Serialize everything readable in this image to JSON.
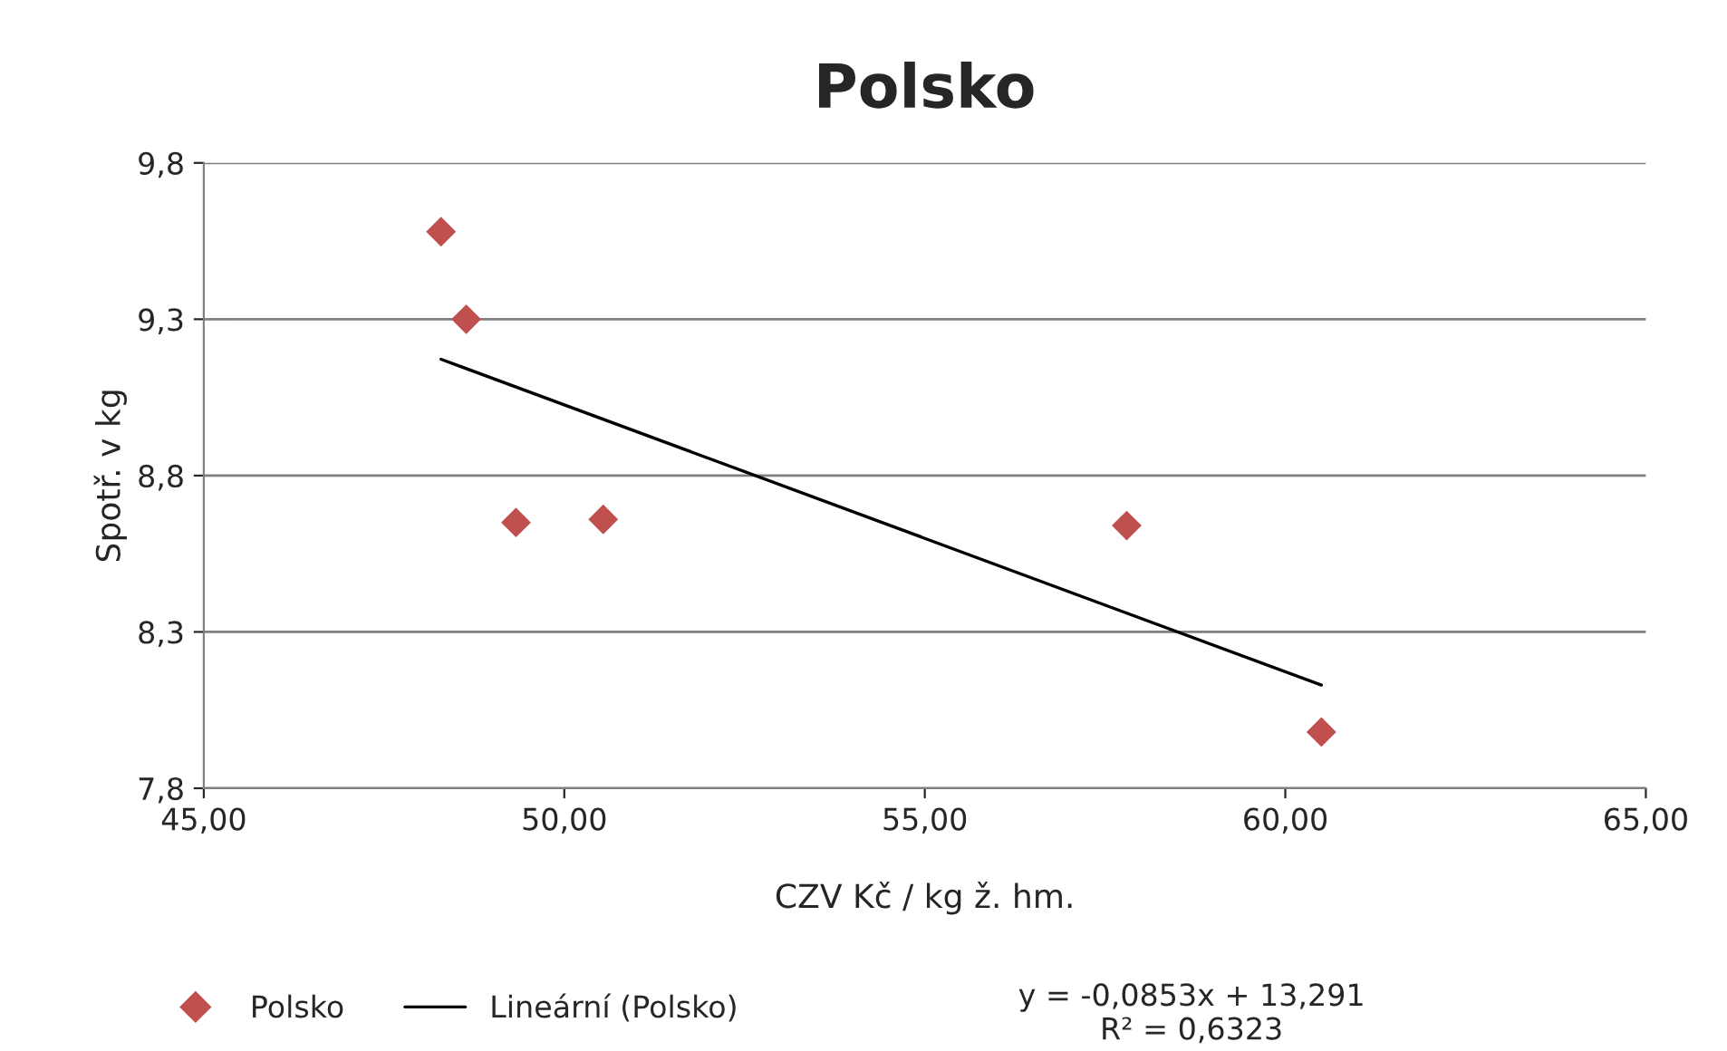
{
  "chart_data": {
    "type": "scatter",
    "title": "Polsko",
    "xlabel": "CZV Kč / kg ž. hm.",
    "ylabel": "Spotř. v kg",
    "series": [
      {
        "name": "Polsko",
        "color": "#c0504d",
        "marker": "diamond",
        "x": [
          48.29,
          48.64,
          49.33,
          50.54,
          57.8,
          60.5
        ],
        "values": [
          9.58,
          9.3,
          8.65,
          8.66,
          8.64,
          7.98
        ]
      },
      {
        "name": "Lineární (Polsko)",
        "type": "line",
        "color": "#000000",
        "line_style": "solid",
        "marker": "none",
        "x": [
          48.29,
          60.5
        ],
        "values": [
          9.172,
          8.13
        ]
      }
    ],
    "xlim": [
      45,
      65
    ],
    "xticks": [
      {
        "value": 45,
        "label": "45,00"
      },
      {
        "value": 50,
        "label": "50,00"
      },
      {
        "value": 55,
        "label": "55,00"
      },
      {
        "value": 60,
        "label": "60,00"
      },
      {
        "value": 65,
        "label": "65,00"
      }
    ],
    "ylim": [
      7.8,
      9.8
    ],
    "yticks": [
      {
        "value": 7.8,
        "label": "7,8"
      },
      {
        "value": 8.3,
        "label": "8,3"
      },
      {
        "value": 8.8,
        "label": "8,8"
      },
      {
        "value": 9.3,
        "label": "9,3"
      },
      {
        "value": 9.8,
        "label": "9,8"
      }
    ],
    "grid": "y",
    "legend": "bottom",
    "annotations": [
      "y = -0,0853x + 13,291\nR² = 0,6323"
    ]
  }
}
